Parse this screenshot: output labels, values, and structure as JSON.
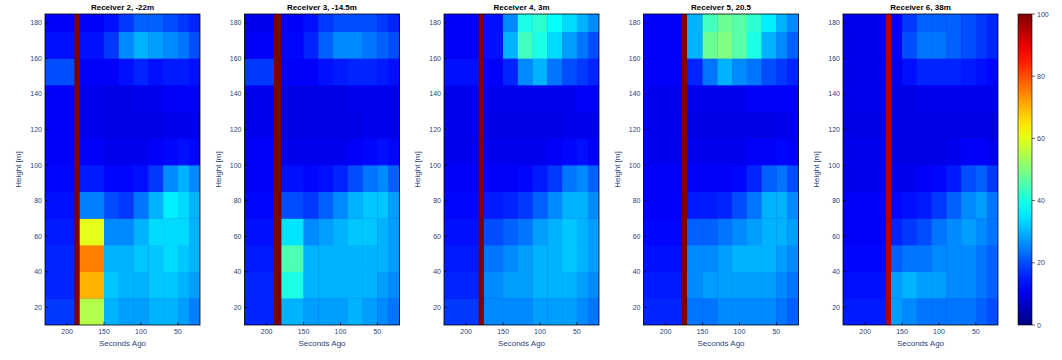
{
  "chart_data": [
    {
      "type": "heatmap",
      "title": "Receiver 2, -22m",
      "x_label": "Seconds Ago",
      "y_label": "Height [m]",
      "color": "jet",
      "xlim": [
        230,
        20
      ],
      "ylim": [
        10,
        185
      ],
      "xticks": [
        200,
        150,
        100,
        50
      ],
      "yticks": [
        20,
        40,
        60,
        80,
        100,
        120,
        140,
        160,
        180
      ],
      "color_range": [
        0,
        100
      ],
      "x_edges": [
        230,
        190,
        183,
        150,
        130,
        110,
        90,
        70,
        50,
        35,
        20
      ],
      "y_edges": [
        10,
        25,
        40,
        55,
        70,
        85,
        100,
        115,
        130,
        145,
        160,
        175,
        185
      ],
      "cells": [
        [
          18,
          100,
          55,
          30,
          28,
          28,
          30,
          30,
          28,
          25
        ],
        [
          16,
          100,
          70,
          32,
          30,
          30,
          32,
          32,
          30,
          28
        ],
        [
          16,
          100,
          75,
          30,
          30,
          32,
          32,
          34,
          32,
          30
        ],
        [
          15,
          100,
          60,
          26,
          26,
          30,
          34,
          34,
          34,
          30
        ],
        [
          14,
          100,
          25,
          20,
          18,
          24,
          30,
          36,
          34,
          30
        ],
        [
          13,
          100,
          15,
          13,
          13,
          14,
          18,
          26,
          30,
          26
        ],
        [
          12,
          100,
          12,
          11,
          11,
          11,
          12,
          13,
          14,
          13
        ],
        [
          12,
          100,
          11,
          10,
          10,
          10,
          10,
          11,
          11,
          11
        ],
        [
          12,
          100,
          11,
          10,
          10,
          11,
          11,
          12,
          12,
          12
        ],
        [
          20,
          100,
          12,
          12,
          14,
          16,
          14,
          15,
          15,
          14
        ],
        [
          14,
          100,
          14,
          18,
          26,
          30,
          28,
          26,
          24,
          20
        ],
        [
          12,
          100,
          12,
          14,
          18,
          22,
          22,
          20,
          18,
          16
        ]
      ]
    },
    {
      "type": "heatmap",
      "title": "Receiver 3, -14.5m",
      "x_label": "Seconds Ago",
      "y_label": "Height [m]",
      "color": "jet",
      "xlim": [
        230,
        20
      ],
      "ylim": [
        10,
        185
      ],
      "xticks": [
        200,
        150,
        100,
        50
      ],
      "yticks": [
        20,
        40,
        60,
        80,
        100,
        120,
        140,
        160,
        180
      ],
      "color_range": [
        0,
        100
      ],
      "x_edges": [
        230,
        190,
        180,
        150,
        130,
        110,
        90,
        70,
        50,
        35,
        20
      ],
      "y_edges": [
        10,
        25,
        40,
        55,
        70,
        85,
        100,
        115,
        130,
        145,
        160,
        175,
        185
      ],
      "cells": [
        [
          16,
          100,
          30,
          28,
          28,
          28,
          30,
          28,
          26,
          24
        ],
        [
          16,
          100,
          40,
          30,
          30,
          30,
          30,
          30,
          28,
          26
        ],
        [
          15,
          100,
          45,
          30,
          30,
          30,
          30,
          30,
          30,
          28
        ],
        [
          14,
          100,
          35,
          26,
          28,
          30,
          32,
          32,
          30,
          28
        ],
        [
          13,
          100,
          20,
          18,
          22,
          26,
          30,
          32,
          32,
          28
        ],
        [
          12,
          100,
          14,
          13,
          14,
          16,
          20,
          24,
          26,
          22
        ],
        [
          12,
          100,
          11,
          11,
          11,
          11,
          12,
          13,
          14,
          13
        ],
        [
          11,
          100,
          10,
          10,
          10,
          10,
          10,
          11,
          11,
          11
        ],
        [
          11,
          100,
          10,
          10,
          10,
          10,
          11,
          11,
          11,
          11
        ],
        [
          18,
          100,
          12,
          12,
          14,
          15,
          16,
          16,
          15,
          14
        ],
        [
          12,
          100,
          13,
          16,
          22,
          26,
          26,
          24,
          22,
          20
        ],
        [
          11,
          100,
          12,
          14,
          18,
          20,
          20,
          20,
          18,
          16
        ]
      ]
    },
    {
      "type": "heatmap",
      "title": "Receiver 4, 3m",
      "x_label": "Seconds Ago",
      "y_label": "Height [m]",
      "color": "jet",
      "xlim": [
        230,
        20
      ],
      "ylim": [
        10,
        185
      ],
      "xticks": [
        200,
        150,
        100,
        50
      ],
      "yticks": [
        20,
        40,
        60,
        80,
        100,
        120,
        140,
        160,
        180
      ],
      "color_range": [
        0,
        100
      ],
      "x_edges": [
        230,
        183,
        176,
        150,
        130,
        110,
        90,
        70,
        50,
        35,
        20
      ],
      "y_edges": [
        10,
        25,
        40,
        55,
        70,
        85,
        100,
        115,
        130,
        145,
        160,
        175,
        185
      ],
      "cells": [
        [
          18,
          100,
          26,
          26,
          26,
          28,
          28,
          28,
          26,
          24
        ],
        [
          16,
          100,
          26,
          28,
          28,
          30,
          30,
          30,
          28,
          26
        ],
        [
          15,
          100,
          24,
          26,
          28,
          30,
          30,
          32,
          30,
          28
        ],
        [
          14,
          100,
          20,
          22,
          24,
          28,
          30,
          32,
          30,
          28
        ],
        [
          13,
          100,
          15,
          16,
          18,
          22,
          26,
          30,
          30,
          26
        ],
        [
          12,
          100,
          12,
          12,
          13,
          15,
          18,
          24,
          26,
          22
        ],
        [
          11,
          100,
          11,
          11,
          11,
          11,
          12,
          13,
          14,
          12
        ],
        [
          11,
          100,
          10,
          10,
          10,
          10,
          10,
          11,
          11,
          11
        ],
        [
          11,
          100,
          11,
          11,
          11,
          11,
          11,
          11,
          12,
          12
        ],
        [
          14,
          100,
          12,
          16,
          26,
          30,
          24,
          20,
          18,
          16
        ],
        [
          12,
          100,
          14,
          30,
          44,
          40,
          34,
          28,
          24,
          20
        ],
        [
          12,
          100,
          14,
          26,
          40,
          42,
          38,
          34,
          30,
          26
        ]
      ]
    },
    {
      "type": "heatmap",
      "title": "Receiver 5, 20.5",
      "x_label": "Seconds Ago",
      "y_label": "Height [m]",
      "color": "jet",
      "xlim": [
        230,
        20
      ],
      "ylim": [
        10,
        185
      ],
      "xticks": [
        200,
        150,
        100,
        50
      ],
      "yticks": [
        20,
        40,
        60,
        80,
        100,
        120,
        140,
        160,
        180
      ],
      "color_range": [
        0,
        100
      ],
      "x_edges": [
        230,
        178,
        171,
        150,
        130,
        110,
        90,
        70,
        50,
        35,
        20
      ],
      "y_edges": [
        10,
        25,
        40,
        55,
        70,
        85,
        100,
        115,
        130,
        145,
        160,
        175,
        185
      ],
      "cells": [
        [
          16,
          100,
          24,
          24,
          26,
          26,
          26,
          26,
          24,
          22
        ],
        [
          15,
          100,
          26,
          28,
          28,
          28,
          28,
          28,
          26,
          24
        ],
        [
          14,
          100,
          26,
          26,
          28,
          30,
          30,
          30,
          28,
          26
        ],
        [
          13,
          100,
          22,
          22,
          24,
          26,
          28,
          30,
          30,
          28
        ],
        [
          12,
          100,
          15,
          15,
          16,
          20,
          24,
          30,
          30,
          26
        ],
        [
          12,
          100,
          12,
          12,
          12,
          13,
          16,
          22,
          24,
          20
        ],
        [
          11,
          100,
          11,
          11,
          11,
          11,
          12,
          12,
          13,
          12
        ],
        [
          11,
          100,
          10,
          10,
          10,
          10,
          10,
          10,
          11,
          11
        ],
        [
          11,
          100,
          11,
          11,
          11,
          11,
          12,
          12,
          12,
          12
        ],
        [
          12,
          100,
          16,
          24,
          30,
          26,
          24,
          20,
          18,
          16
        ],
        [
          12,
          100,
          30,
          48,
          50,
          46,
          40,
          30,
          26,
          22
        ],
        [
          12,
          100,
          30,
          44,
          48,
          46,
          42,
          36,
          30,
          26
        ]
      ]
    },
    {
      "type": "heatmap",
      "title": "Receiver 6, 38m",
      "x_label": "Seconds Ago",
      "y_label": "Height [m]",
      "color": "jet",
      "xlim": [
        230,
        20
      ],
      "ylim": [
        10,
        185
      ],
      "xticks": [
        200,
        150,
        100,
        50
      ],
      "yticks": [
        20,
        40,
        60,
        80,
        100,
        120,
        140,
        160,
        180
      ],
      "color_range": [
        0,
        100
      ],
      "color_ticks": [
        0,
        20,
        40,
        60,
        80,
        100
      ],
      "x_edges": [
        230,
        172,
        165,
        150,
        130,
        110,
        90,
        70,
        50,
        35,
        20
      ],
      "y_edges": [
        10,
        25,
        40,
        55,
        70,
        85,
        100,
        115,
        130,
        145,
        160,
        175,
        185
      ],
      "cells": [
        [
          15,
          95,
          28,
          26,
          24,
          24,
          24,
          24,
          22,
          20
        ],
        [
          14,
          95,
          28,
          30,
          28,
          28,
          26,
          26,
          24,
          22
        ],
        [
          13,
          95,
          22,
          24,
          24,
          26,
          26,
          26,
          24,
          22
        ],
        [
          12,
          95,
          16,
          18,
          20,
          24,
          26,
          28,
          26,
          24
        ],
        [
          12,
          95,
          13,
          14,
          15,
          18,
          22,
          26,
          28,
          24
        ],
        [
          11,
          95,
          11,
          11,
          12,
          13,
          15,
          20,
          22,
          18
        ],
        [
          11,
          95,
          10,
          10,
          10,
          10,
          11,
          12,
          12,
          11
        ],
        [
          10,
          95,
          10,
          10,
          10,
          10,
          10,
          10,
          10,
          10
        ],
        [
          11,
          95,
          10,
          10,
          11,
          11,
          11,
          11,
          11,
          11
        ],
        [
          11,
          95,
          11,
          14,
          16,
          16,
          16,
          15,
          14,
          13
        ],
        [
          11,
          95,
          12,
          20,
          24,
          24,
          22,
          20,
          18,
          16
        ],
        [
          11,
          95,
          12,
          18,
          22,
          22,
          22,
          20,
          18,
          16
        ]
      ]
    }
  ]
}
